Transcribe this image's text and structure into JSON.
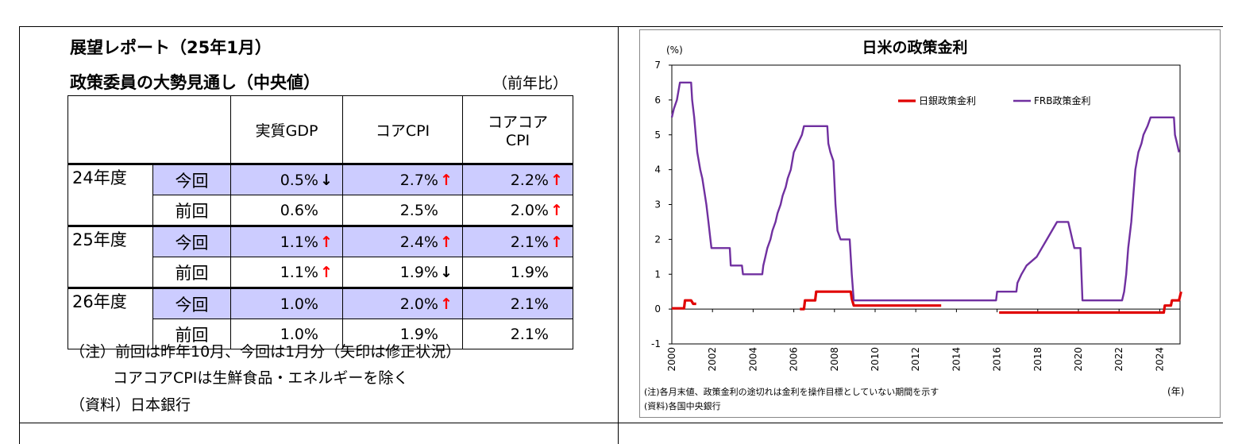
{
  "left": {
    "title_line1": "展望レポート（25年1月）",
    "title_line2": "政策委員の大勢見通し（中央値）",
    "unit": "（前年比）",
    "headers": [
      "実質GDP",
      "コアCPI",
      "コアコア\nCPI"
    ],
    "rows": [
      {
        "year": "24年度",
        "kind": "今回",
        "vals": [
          "0.5%",
          "2.7%",
          "2.2%"
        ],
        "arrows": [
          "↓",
          "↑",
          "↑"
        ],
        "highlight": true
      },
      {
        "year": "",
        "kind": "前回",
        "vals": [
          "0.6%",
          "2.5%",
          "2.0%"
        ],
        "arrows": [
          "",
          "",
          "↑"
        ],
        "highlight": false
      },
      {
        "year": "25年度",
        "kind": "今回",
        "vals": [
          "1.1%",
          "2.4%",
          "2.1%"
        ],
        "arrows": [
          "↑",
          "↑",
          "↑"
        ],
        "highlight": true
      },
      {
        "year": "",
        "kind": "前回",
        "vals": [
          "1.1%",
          "1.9%",
          "1.9%"
        ],
        "arrows": [
          "↑",
          "↓",
          ""
        ],
        "highlight": false
      },
      {
        "year": "26年度",
        "kind": "今回",
        "vals": [
          "1.0%",
          "2.0%",
          "2.1%"
        ],
        "arrows": [
          "",
          "↑",
          ""
        ],
        "highlight": true
      },
      {
        "year": "",
        "kind": "前回",
        "vals": [
          "1.0%",
          "1.9%",
          "2.1%"
        ],
        "arrows": [
          "",
          "",
          ""
        ],
        "highlight": false
      }
    ],
    "note1": "（注）前回は昨年10月、今回は1月分（矢印は修正状況）",
    "note2": "コアコアCPIは生鮮食品・エネルギーを除く",
    "source": "（資料）日本銀行"
  },
  "colors": {
    "up_arrow": "#ff0000",
    "down_arrow": "#000000",
    "highlight": "#ccccff",
    "boj": "#e00000",
    "frb": "#7030a0"
  },
  "chart_data": {
    "type": "line",
    "title": "日米の政策金利",
    "ylabel": "(%)",
    "xlabel": "(年)",
    "ylim": [
      -1,
      7
    ],
    "xlim": [
      2000,
      2025
    ],
    "yticks": [
      "7",
      "6",
      "5",
      "4",
      "3",
      "2",
      "1",
      "0",
      "-1"
    ],
    "xticks": [
      "2000",
      "2002",
      "2004",
      "2006",
      "2008",
      "2010",
      "2012",
      "2014",
      "2016",
      "2018",
      "2020",
      "2022",
      "2024"
    ],
    "legend_position": "top-right",
    "note": "(注)各月末値、政策金利の途切れは金利を操作目標としていない期間を示す",
    "source": "(資料)各国中央銀行",
    "series": [
      {
        "name": "日銀政策金利",
        "segments": [
          [
            [
              2000.0,
              0.02
            ],
            [
              2000.6,
              0.02
            ],
            [
              2000.65,
              0.25
            ],
            [
              2000.95,
              0.25
            ],
            [
              2001.05,
              0.15
            ],
            [
              2001.2,
              0.15
            ]
          ],
          [
            [
              2006.3,
              0.0
            ],
            [
              2006.5,
              0.0
            ],
            [
              2006.55,
              0.25
            ],
            [
              2007.05,
              0.25
            ],
            [
              2007.1,
              0.5
            ],
            [
              2008.8,
              0.5
            ],
            [
              2008.85,
              0.3
            ],
            [
              2008.95,
              0.1
            ],
            [
              2013.25,
              0.1
            ]
          ],
          [
            [
              2016.1,
              -0.1
            ],
            [
              2024.2,
              -0.1
            ],
            [
              2024.25,
              0.1
            ],
            [
              2024.55,
              0.1
            ],
            [
              2024.6,
              0.25
            ],
            [
              2024.95,
              0.25
            ],
            [
              2025.05,
              0.5
            ]
          ]
        ]
      },
      {
        "name": "FRB政策金利",
        "segments": [
          [
            [
              2000.0,
              5.5
            ],
            [
              2000.1,
              5.75
            ],
            [
              2000.25,
              6.0
            ],
            [
              2000.4,
              6.5
            ],
            [
              2000.95,
              6.5
            ],
            [
              2001.0,
              6.0
            ],
            [
              2001.1,
              5.5
            ],
            [
              2001.25,
              4.5
            ],
            [
              2001.4,
              4.0
            ],
            [
              2001.5,
              3.75
            ],
            [
              2001.7,
              3.0
            ],
            [
              2001.8,
              2.5
            ],
            [
              2001.9,
              2.0
            ],
            [
              2001.95,
              1.75
            ],
            [
              2002.85,
              1.75
            ],
            [
              2002.9,
              1.25
            ],
            [
              2003.45,
              1.25
            ],
            [
              2003.5,
              1.0
            ],
            [
              2004.45,
              1.0
            ],
            [
              2004.5,
              1.25
            ],
            [
              2004.6,
              1.5
            ],
            [
              2004.7,
              1.75
            ],
            [
              2004.85,
              2.0
            ],
            [
              2004.95,
              2.25
            ],
            [
              2005.1,
              2.5
            ],
            [
              2005.2,
              2.75
            ],
            [
              2005.35,
              3.0
            ],
            [
              2005.45,
              3.25
            ],
            [
              2005.6,
              3.5
            ],
            [
              2005.7,
              3.75
            ],
            [
              2005.85,
              4.0
            ],
            [
              2006.0,
              4.5
            ],
            [
              2006.2,
              4.75
            ],
            [
              2006.4,
              5.0
            ],
            [
              2006.5,
              5.25
            ],
            [
              2007.65,
              5.25
            ],
            [
              2007.7,
              4.75
            ],
            [
              2007.8,
              4.5
            ],
            [
              2007.95,
              4.25
            ],
            [
              2008.05,
              3.0
            ],
            [
              2008.15,
              2.25
            ],
            [
              2008.3,
              2.0
            ],
            [
              2008.75,
              2.0
            ],
            [
              2008.8,
              1.5
            ],
            [
              2008.85,
              1.0
            ],
            [
              2008.95,
              0.25
            ],
            [
              2015.95,
              0.25
            ],
            [
              2016.0,
              0.5
            ],
            [
              2016.95,
              0.5
            ],
            [
              2017.0,
              0.75
            ],
            [
              2017.2,
              1.0
            ],
            [
              2017.45,
              1.25
            ],
            [
              2017.95,
              1.5
            ],
            [
              2018.2,
              1.75
            ],
            [
              2018.45,
              2.0
            ],
            [
              2018.7,
              2.25
            ],
            [
              2018.95,
              2.5
            ],
            [
              2019.5,
              2.5
            ],
            [
              2019.6,
              2.25
            ],
            [
              2019.7,
              2.0
            ],
            [
              2019.8,
              1.75
            ],
            [
              2020.1,
              1.75
            ],
            [
              2020.2,
              0.25
            ],
            [
              2022.15,
              0.25
            ],
            [
              2022.25,
              0.5
            ],
            [
              2022.35,
              1.0
            ],
            [
              2022.45,
              1.75
            ],
            [
              2022.6,
              2.5
            ],
            [
              2022.7,
              3.25
            ],
            [
              2022.8,
              4.0
            ],
            [
              2022.95,
              4.5
            ],
            [
              2023.1,
              4.75
            ],
            [
              2023.2,
              5.0
            ],
            [
              2023.4,
              5.25
            ],
            [
              2023.55,
              5.5
            ],
            [
              2024.7,
              5.5
            ],
            [
              2024.75,
              5.0
            ],
            [
              2024.85,
              4.75
            ],
            [
              2024.95,
              4.5
            ]
          ]
        ]
      }
    ]
  }
}
